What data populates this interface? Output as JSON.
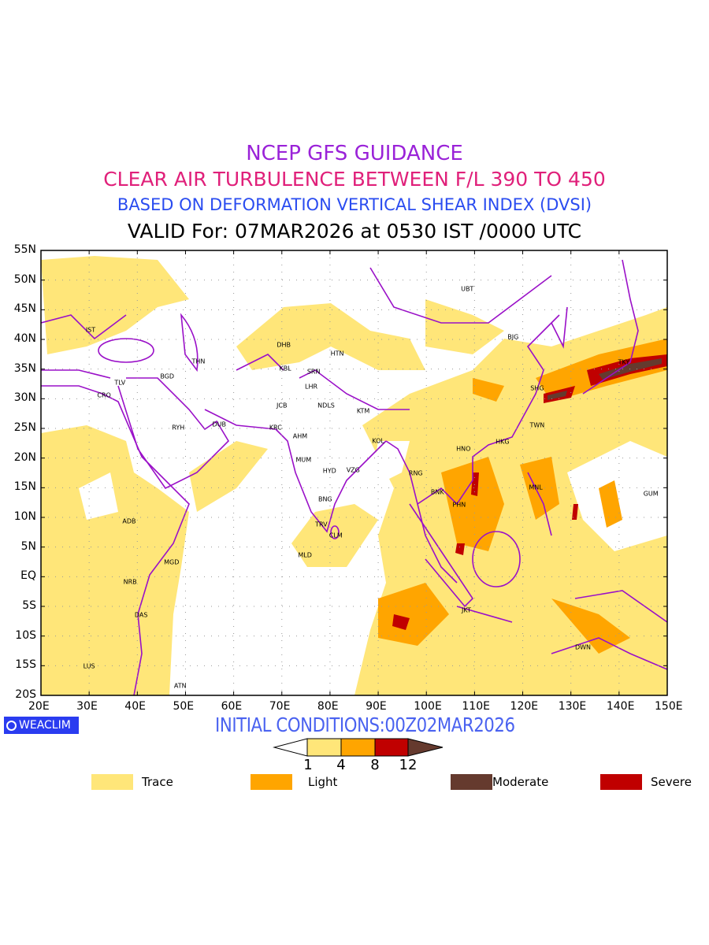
{
  "header": {
    "line1": "NCEP GFS GUIDANCE",
    "line2": "CLEAR AIR TURBULENCE BETWEEN F/L 390 TO 450",
    "line3": "BASED ON DEFORMATION VERTICAL SHEAR INDEX (DVSI)",
    "line4": "VALID For: 07MAR2026 at 0530 IST /0000 UTC"
  },
  "map": {
    "lon_range": [
      20,
      150
    ],
    "lat_range": [
      -20,
      55
    ],
    "lon_ticks": [
      "20E",
      "30E",
      "40E",
      "50E",
      "60E",
      "70E",
      "80E",
      "90E",
      "100E",
      "110E",
      "120E",
      "130E",
      "140E",
      "150E"
    ],
    "lat_ticks": [
      "55N",
      "50N",
      "45N",
      "40N",
      "35N",
      "30N",
      "25N",
      "20N",
      "15N",
      "10N",
      "5N",
      "EQ",
      "5S",
      "10S",
      "15S",
      "20S"
    ],
    "cities": [
      {
        "name": "IST",
        "lon": 30.3,
        "lat": 41.6
      },
      {
        "name": "TLV",
        "lon": 36.4,
        "lat": 32.7
      },
      {
        "name": "CRO",
        "lon": 33.1,
        "lat": 30.6
      },
      {
        "name": "BGD",
        "lon": 46.2,
        "lat": 33.8
      },
      {
        "name": "THN",
        "lon": 52.7,
        "lat": 36.3
      },
      {
        "name": "RYH",
        "lon": 48.5,
        "lat": 25.1
      },
      {
        "name": "DUB",
        "lon": 57.0,
        "lat": 25.6
      },
      {
        "name": "DHB",
        "lon": 70.4,
        "lat": 39.1
      },
      {
        "name": "KBL",
        "lon": 70.7,
        "lat": 35.1
      },
      {
        "name": "SRN",
        "lon": 76.6,
        "lat": 34.5
      },
      {
        "name": "HTN",
        "lon": 81.5,
        "lat": 37.6
      },
      {
        "name": "LHR",
        "lon": 76.1,
        "lat": 32.0
      },
      {
        "name": "JCB",
        "lon": 70.0,
        "lat": 28.8
      },
      {
        "name": "NDLS",
        "lon": 79.2,
        "lat": 28.8
      },
      {
        "name": "KTM",
        "lon": 86.9,
        "lat": 27.9
      },
      {
        "name": "KRC",
        "lon": 68.7,
        "lat": 25.1
      },
      {
        "name": "AHM",
        "lon": 73.8,
        "lat": 23.7
      },
      {
        "name": "MUM",
        "lon": 74.5,
        "lat": 19.7
      },
      {
        "name": "HYD",
        "lon": 79.9,
        "lat": 17.8
      },
      {
        "name": "VZG",
        "lon": 84.8,
        "lat": 17.9
      },
      {
        "name": "KOL",
        "lon": 90.0,
        "lat": 22.9
      },
      {
        "name": "BNG",
        "lon": 79.0,
        "lat": 13.0
      },
      {
        "name": "TRV",
        "lon": 78.2,
        "lat": 8.8
      },
      {
        "name": "CLM",
        "lon": 81.2,
        "lat": 6.9
      },
      {
        "name": "MLD",
        "lon": 74.8,
        "lat": 3.6
      },
      {
        "name": "ADB",
        "lon": 38.3,
        "lat": 9.4
      },
      {
        "name": "MGD",
        "lon": 47.1,
        "lat": 2.5
      },
      {
        "name": "NRB",
        "lon": 38.5,
        "lat": -0.9
      },
      {
        "name": "DAS",
        "lon": 40.8,
        "lat": -6.4
      },
      {
        "name": "LUS",
        "lon": 30.0,
        "lat": -15.1
      },
      {
        "name": "ATN",
        "lon": 48.9,
        "lat": -18.4
      },
      {
        "name": "UBT",
        "lon": 108.5,
        "lat": 48.5
      },
      {
        "name": "BJG",
        "lon": 118.0,
        "lat": 40.4
      },
      {
        "name": "SHG",
        "lon": 123.0,
        "lat": 31.8
      },
      {
        "name": "TKY",
        "lon": 141.0,
        "lat": 36.1
      },
      {
        "name": "TWN",
        "lon": 123.0,
        "lat": 25.5
      },
      {
        "name": "HKG",
        "lon": 115.8,
        "lat": 22.7
      },
      {
        "name": "HNO",
        "lon": 107.7,
        "lat": 21.5
      },
      {
        "name": "RNG",
        "lon": 97.8,
        "lat": 17.4
      },
      {
        "name": "BNK",
        "lon": 102.3,
        "lat": 14.2
      },
      {
        "name": "PHN",
        "lon": 106.8,
        "lat": 12.1
      },
      {
        "name": "MNL",
        "lon": 122.7,
        "lat": 15.0
      },
      {
        "name": "GUM",
        "lon": 146.6,
        "lat": 14.0
      },
      {
        "name": "JKT",
        "lon": 108.3,
        "lat": -5.7
      },
      {
        "name": "DWN",
        "lon": 132.5,
        "lat": -11.9
      }
    ]
  },
  "footer": {
    "badge": "WEACLIM",
    "initial_conditions": "INITIAL CONDITIONS:00Z02MAR2026",
    "colorbar_labels": [
      "1",
      "4",
      "8",
      "12"
    ],
    "colorbar_colors": [
      "#ffe679",
      "#ffa500",
      "#c00000",
      "#653a2e"
    ],
    "legend": [
      {
        "label": "Trace",
        "color": "#ffe679"
      },
      {
        "label": "Light",
        "color": "#ffa500"
      },
      {
        "label": "Moderate",
        "color": "#653a2e"
      },
      {
        "label": "Severe",
        "color": "#c00000"
      }
    ]
  }
}
